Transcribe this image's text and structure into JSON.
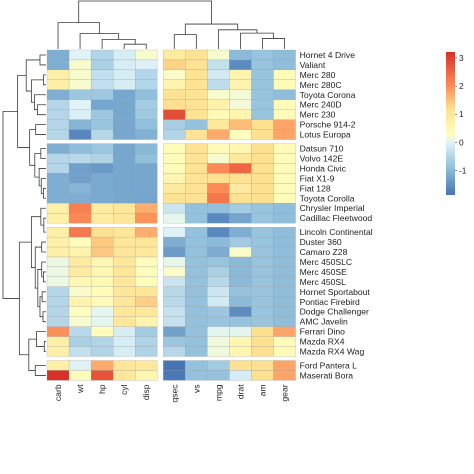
{
  "chart_data": {
    "type": "heatmap",
    "title": "",
    "xlabel": "",
    "ylabel": "",
    "clustered": true,
    "column_split_after": 5,
    "row_splits_after": [
      9,
      17,
      30
    ],
    "columns": [
      "carb",
      "wt",
      "hp",
      "cyl",
      "disp",
      "qsec",
      "vs",
      "mpg",
      "drat",
      "am",
      "gear"
    ],
    "rows": [
      "Hornet 4 Drive",
      "Valiant",
      "Merc 280",
      "Merc 280C",
      "Toyota Corona",
      "Merc 240D",
      "Merc 230",
      "Porsche 914-2",
      "Lotus Europa",
      "Datsun 710",
      "Volvo 142E",
      "Honda Civic",
      "Fiat X1-9",
      "Fiat 128",
      "Toyota Corolla",
      "Chrysler Imperial",
      "Cadillac Fleetwood",
      "Lincoln Continental",
      "Duster 360",
      "Camaro Z28",
      "Merc 450SLC",
      "Merc 450SE",
      "Merc 450SL",
      "Hornet Sportabout",
      "Pontiac Firebird",
      "Dodge Challenger",
      "AMC Javelin",
      "Ferrari Dino",
      "Mazda RX4",
      "Mazda RX4 Wag",
      "Ford Pantera L",
      "Maserati Bora"
    ],
    "values": [
      [
        -1.12,
        -0.0,
        -0.54,
        -0.11,
        0.22,
        0.89,
        1.12,
        0.22,
        -0.97,
        -0.81,
        -0.93
      ],
      [
        -1.12,
        0.23,
        -0.61,
        -0.11,
        -0.05,
        1.33,
        1.12,
        -0.33,
        -1.56,
        -0.81,
        -0.93
      ],
      [
        0.74,
        0.23,
        -0.35,
        -0.11,
        -0.51,
        0.25,
        1.12,
        -0.15,
        0.61,
        -0.81,
        0.42
      ],
      [
        0.74,
        0.23,
        -0.35,
        -0.11,
        -0.51,
        0.59,
        1.12,
        -0.38,
        0.61,
        -0.81,
        0.42
      ],
      [
        -1.12,
        -0.77,
        -0.74,
        -1.22,
        -0.89,
        1.15,
        1.12,
        0.23,
        0.19,
        -0.81,
        -0.93
      ],
      [
        -0.5,
        -0.0,
        -1.24,
        -1.22,
        -0.68,
        1.2,
        1.12,
        0.72,
        0.17,
        -0.81,
        0.42
      ],
      [
        -0.5,
        -0.07,
        -0.75,
        -1.22,
        -0.73,
        2.83,
        1.12,
        0.45,
        0.6,
        -0.81,
        0.42
      ],
      [
        -0.5,
        -1.04,
        -0.8,
        -1.22,
        -0.89,
        -0.64,
        -0.87,
        0.98,
        1.55,
        1.19,
        1.78
      ],
      [
        -0.5,
        -1.64,
        -0.49,
        -1.22,
        -1.09,
        -0.53,
        1.12,
        1.71,
        0.32,
        1.19,
        1.78
      ],
      [
        -1.12,
        -0.92,
        -0.78,
        -1.22,
        -0.99,
        0.43,
        1.12,
        0.45,
        0.57,
        1.19,
        0.42
      ],
      [
        -0.5,
        -0.45,
        -0.55,
        -1.22,
        -0.89,
        0.43,
        1.12,
        0.22,
        0.97,
        1.19,
        0.42
      ],
      [
        -0.5,
        -1.31,
        -1.38,
        -1.22,
        -1.23,
        0.38,
        1.12,
        2.04,
        2.49,
        1.19,
        0.42
      ],
      [
        -1.12,
        -1.31,
        -1.19,
        -1.22,
        -1.22,
        0.59,
        1.12,
        1.2,
        1.17,
        1.19,
        0.42
      ],
      [
        -1.12,
        -1.04,
        -1.19,
        -1.22,
        -1.23,
        0.91,
        1.12,
        2.04,
        0.9,
        1.19,
        0.42
      ],
      [
        -1.12,
        -1.12,
        -1.18,
        -1.22,
        -1.25,
        1.15,
        1.12,
        2.29,
        1.17,
        1.19,
        0.42
      ],
      [
        0.74,
        2.17,
        0.85,
        1.01,
        1.68,
        -0.24,
        -0.87,
        -0.89,
        -0.69,
        -0.81,
        -0.93
      ],
      [
        0.74,
        2.08,
        0.85,
        1.01,
        1.95,
        0.07,
        -0.87,
        -1.61,
        -1.25,
        -0.81,
        -0.93
      ],
      [
        0.74,
        2.26,
        1.16,
        1.01,
        1.69,
        -0.02,
        -0.87,
        -1.61,
        -1.12,
        -0.81,
        -0.93
      ],
      [
        0.74,
        0.36,
        1.43,
        1.01,
        1.04,
        -1.12,
        -0.87,
        -0.96,
        -0.72,
        -0.81,
        -0.93
      ],
      [
        0.74,
        0.64,
        1.43,
        1.01,
        0.97,
        -1.37,
        -0.87,
        -1.13,
        0.25,
        -0.81,
        -0.93
      ],
      [
        0.12,
        0.87,
        0.49,
        1.01,
        0.36,
        0.08,
        -0.87,
        -0.81,
        -0.98,
        -0.81,
        -0.93
      ],
      [
        0.12,
        0.87,
        0.49,
        1.01,
        0.36,
        0.25,
        -0.87,
        -0.61,
        -0.98,
        -0.81,
        -0.93
      ],
      [
        0.12,
        0.52,
        0.49,
        1.01,
        0.36,
        -0.25,
        -0.87,
        -0.47,
        -0.98,
        -0.81,
        -0.93
      ],
      [
        -0.5,
        0.23,
        0.41,
        1.01,
        1.04,
        -0.46,
        -0.87,
        -0.23,
        -0.84,
        -0.81,
        -0.93
      ],
      [
        -0.5,
        0.64,
        0.41,
        1.01,
        1.37,
        -0.45,
        -0.87,
        -0.15,
        -0.97,
        -0.81,
        -0.93
      ],
      [
        -0.5,
        0.31,
        0.05,
        1.01,
        0.98,
        -0.31,
        -0.87,
        -0.76,
        -1.56,
        -0.81,
        -0.93
      ],
      [
        -0.5,
        0.22,
        0.05,
        1.01,
        0.59,
        -0.31,
        -0.87,
        -0.81,
        -0.84,
        -0.81,
        -0.93
      ],
      [
        1.97,
        -0.45,
        0.41,
        -0.11,
        -0.69,
        -1.31,
        -0.87,
        0.04,
        0.04,
        1.19,
        1.78
      ],
      [
        0.74,
        -0.61,
        -0.54,
        -0.11,
        -0.57,
        -0.78,
        -0.87,
        0.15,
        0.57,
        1.19,
        0.42
      ],
      [
        0.74,
        -0.35,
        -0.54,
        -0.11,
        -0.57,
        -0.46,
        -0.87,
        0.15,
        0.57,
        1.19,
        0.42
      ],
      [
        0.74,
        -0.03,
        1.71,
        1.01,
        0.97,
        -1.87,
        -0.87,
        -0.71,
        1.17,
        1.19,
        1.78
      ],
      [
        3.21,
        0.36,
        2.75,
        1.01,
        0.57,
        -1.82,
        -0.87,
        -0.84,
        -0.1,
        1.19,
        1.78
      ]
    ],
    "color_scale": {
      "min": -1.87,
      "max": 3.21,
      "ticks": [
        3,
        2,
        1,
        0,
        -1
      ],
      "tick_labels": [
        "3",
        "2",
        "1",
        "0",
        "-1"
      ],
      "stops": [
        {
          "v": -1.87,
          "color": "#4575b4"
        },
        {
          "v": -0.9,
          "color": "#91bfdb"
        },
        {
          "v": 0.0,
          "color": "#e0f3f8"
        },
        {
          "v": 0.3,
          "color": "#ffffbf"
        },
        {
          "v": 1.2,
          "color": "#fee090"
        },
        {
          "v": 2.0,
          "color": "#fc8d59"
        },
        {
          "v": 3.21,
          "color": "#d73027"
        }
      ]
    }
  }
}
